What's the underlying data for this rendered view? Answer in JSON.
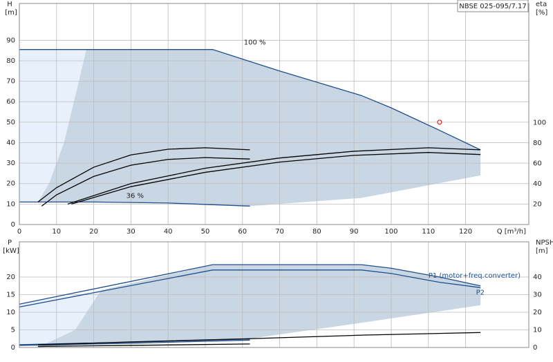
{
  "chart_data": [
    {
      "type": "line",
      "title": "NBSE 025-095/7.17",
      "y_label": "H",
      "y_unit": "[m]",
      "y2_label": "eta",
      "y2_unit": "[%]",
      "x_label": "Q [m³/h]",
      "xlim": [
        0,
        137
      ],
      "xticks": [
        0,
        10,
        20,
        30,
        40,
        50,
        60,
        70,
        80,
        90,
        100,
        110,
        120
      ],
      "xtick_labels": true,
      "ylim": [
        0,
        108
      ],
      "yticks": [
        0,
        10,
        20,
        30,
        40,
        50,
        60,
        70,
        80,
        90
      ],
      "y2lim": [
        0,
        217
      ],
      "y2ticks": [
        20,
        40,
        60,
        80,
        100
      ],
      "grid": true,
      "regions": [
        {
          "color": "#e8f1fb",
          "x": [
            0,
            18,
            16,
            12,
            8,
            5,
            0
          ],
          "values": [
            85.5,
            85.5,
            70,
            40,
            20,
            11,
            11
          ]
        },
        {
          "color": "#c9d6e3",
          "x": [
            18,
            52,
            70,
            92,
            100,
            113,
            124,
            124,
            92,
            62,
            40,
            20,
            5,
            8,
            12,
            16
          ],
          "values": [
            85.5,
            85.5,
            75,
            63,
            57,
            46,
            36.5,
            24,
            13,
            9,
            10.5,
            11,
            11,
            20,
            40,
            70
          ]
        }
      ],
      "series": [
        {
          "name": "100 %",
          "color": "#1f4e8c",
          "x": [
            0,
            52,
            70,
            92,
            100,
            113,
            124
          ],
          "values": [
            85.5,
            85.5,
            75,
            63,
            57,
            46,
            36.5
          ]
        },
        {
          "name": "36 %",
          "color": "#1f4e8c",
          "x": [
            0,
            20,
            40,
            62
          ],
          "values": [
            11,
            11,
            10.5,
            9
          ]
        },
        {
          "color": "#000000",
          "x": [
            5,
            10,
            20,
            30,
            40,
            50,
            62
          ],
          "values": [
            11,
            18,
            28,
            34,
            36.8,
            37.5,
            36.5
          ]
        },
        {
          "color": "#000000",
          "x": [
            6,
            10,
            20,
            30,
            40,
            50,
            62
          ],
          "values": [
            9,
            14.5,
            23.5,
            29,
            31.8,
            32.7,
            32
          ]
        },
        {
          "color": "#000000",
          "x": [
            13,
            30,
            50,
            70,
            90,
            110,
            124
          ],
          "values": [
            10,
            20,
            27.5,
            32.5,
            35.8,
            37.5,
            36.5
          ]
        },
        {
          "color": "#000000",
          "x": [
            14,
            30,
            50,
            70,
            90,
            110,
            124
          ],
          "values": [
            10,
            18.5,
            25.5,
            30.5,
            33.8,
            35.2,
            34.2
          ]
        }
      ],
      "points": [
        {
          "color": "#e00000",
          "x": [
            113
          ],
          "values": [
            50
          ]
        }
      ]
    },
    {
      "type": "line",
      "y_label": "P",
      "y_unit": "[kW]",
      "y2_label": "NPSH",
      "y2_unit": "[m]",
      "xlim": [
        0,
        137
      ],
      "xticks": [
        0,
        10,
        20,
        30,
        40,
        50,
        60,
        70,
        80,
        90,
        100,
        110,
        120
      ],
      "xtick_labels": false,
      "ylim": [
        0,
        30
      ],
      "yticks": [
        0,
        5,
        10,
        15,
        20
      ],
      "y2lim": [
        0,
        60
      ],
      "y2ticks": [
        0,
        10,
        20,
        30,
        40
      ],
      "grid": true,
      "regions": [
        {
          "color": "#e8f1fb",
          "x": [
            0,
            22,
            15,
            10,
            5,
            0
          ],
          "values": [
            12.3,
            16.3,
            5,
            2,
            0.5,
            0.5
          ]
        },
        {
          "color": "#c9d6e3",
          "x": [
            22,
            52,
            92,
            100,
            113,
            124,
            124,
            92,
            62,
            10,
            5,
            15
          ],
          "values": [
            16.3,
            23.5,
            23.5,
            22.5,
            20,
            17.5,
            12,
            7,
            2.5,
            0.5,
            0,
            5
          ]
        }
      ],
      "series": [
        {
          "name": "P1 (motor+freq.converter)",
          "color": "#1f4e8c",
          "x": [
            0,
            52,
            92,
            100,
            113,
            124
          ],
          "values": [
            12.3,
            23.5,
            23.5,
            22.5,
            20,
            17.5
          ]
        },
        {
          "name": "P2",
          "color": "#1f4e8c",
          "x": [
            0,
            52,
            92,
            100,
            113,
            124
          ],
          "values": [
            11.5,
            22,
            22,
            21,
            18.5,
            17
          ]
        },
        {
          "color": "#1f4e8c",
          "x": [
            0,
            30,
            62
          ],
          "values": [
            0.8,
            1.5,
            2.4
          ]
        },
        {
          "color": "#1f4e8c",
          "x": [
            0,
            30,
            62
          ],
          "values": [
            0.6,
            1.2,
            2.1
          ]
        },
        {
          "color": "#000000",
          "axis": "y2",
          "x": [
            5,
            30,
            62,
            92,
            124
          ],
          "values": [
            1.5,
            3.2,
            5,
            7,
            8.5
          ]
        },
        {
          "color": "#000000",
          "x": [
            5,
            30,
            62
          ],
          "values": [
            0.3,
            0.6,
            1
          ]
        }
      ]
    }
  ]
}
